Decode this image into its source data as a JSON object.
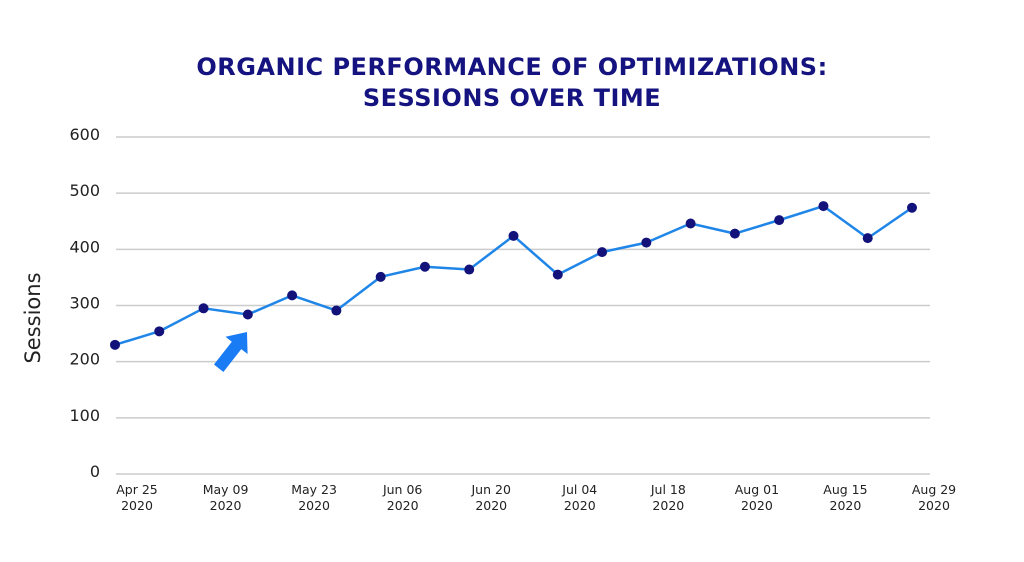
{
  "chart_data": {
    "type": "line",
    "title_line1": "ORGANIC PERFORMANCE OF OPTIMIZATIONS:",
    "title_line2": "SESSIONS OVER TIME",
    "xlabel": "",
    "ylabel": "Sessions",
    "ylim": [
      0,
      600
    ],
    "yticks": [
      0,
      100,
      200,
      300,
      400,
      500,
      600
    ],
    "grid": true,
    "x": [
      "2020-04-25",
      "2020-05-02",
      "2020-05-09",
      "2020-05-16",
      "2020-05-23",
      "2020-05-30",
      "2020-06-06",
      "2020-06-13",
      "2020-06-20",
      "2020-06-27",
      "2020-07-04",
      "2020-07-11",
      "2020-07-18",
      "2020-07-25",
      "2020-08-01",
      "2020-08-08",
      "2020-08-15",
      "2020-08-22",
      "2020-08-29"
    ],
    "xtick_labels": [
      {
        "line1": "Apr 25",
        "line2": "2020",
        "index": 0
      },
      {
        "line1": "May 09",
        "line2": "2020",
        "index": 2
      },
      {
        "line1": "May 23",
        "line2": "2020",
        "index": 4
      },
      {
        "line1": "Jun 06",
        "line2": "2020",
        "index": 6
      },
      {
        "line1": "Jun 20",
        "line2": "2020",
        "index": 8
      },
      {
        "line1": "Jul 04",
        "line2": "2020",
        "index": 10
      },
      {
        "line1": "Jul 18",
        "line2": "2020",
        "index": 12
      },
      {
        "line1": "Aug 01",
        "line2": "2020",
        "index": 14
      },
      {
        "line1": "Aug 15",
        "line2": "2020",
        "index": 16
      },
      {
        "line1": "Aug 29",
        "line2": "2020",
        "index": 18
      }
    ],
    "series": [
      {
        "values": [
          230,
          254,
          295,
          284,
          318,
          291,
          351,
          369,
          364,
          424,
          355,
          395,
          412,
          446,
          428,
          452,
          477,
          420,
          474
        ]
      }
    ],
    "annotation": {
      "type": "arrow",
      "points_to_index": 3,
      "color": "#1a7cf5"
    },
    "colors": {
      "line": "#1f86e8",
      "marker": "#12127a",
      "grid": "#cccccc",
      "title": "#14137f"
    }
  }
}
